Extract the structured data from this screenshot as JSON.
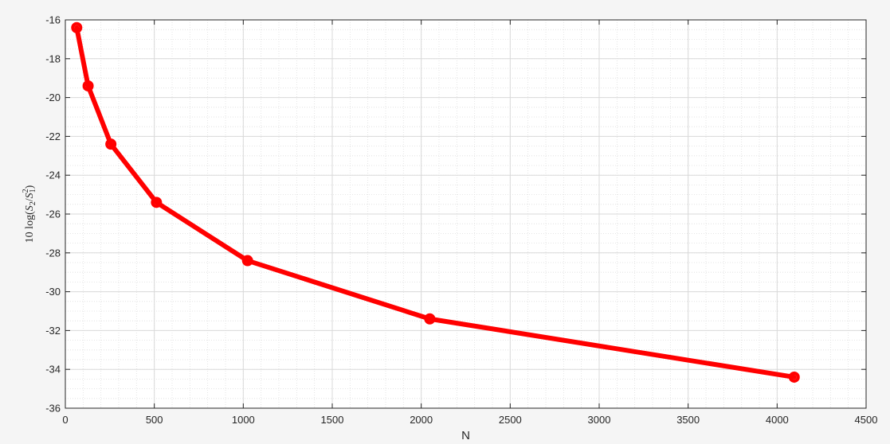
{
  "figure": {
    "background": "#f5f5f5",
    "axes_background": "#ffffff"
  },
  "chart_data": {
    "type": "line",
    "title": "",
    "xlabel": "N",
    "ylabel": "10 log(S2/S1^2)",
    "ylabel_parts": {
      "prefix": "10 log(",
      "s": "S",
      "sub2": "2",
      "slash": "/",
      "sub1": "1",
      "sup": "2",
      "close": ")"
    },
    "xlim": [
      0,
      4500
    ],
    "ylim": [
      -36,
      -16
    ],
    "xticks": [
      0,
      500,
      1000,
      1500,
      2000,
      2500,
      3000,
      3500,
      4000,
      4500
    ],
    "xtick_labels": [
      "0",
      "500",
      "1000",
      "1500",
      "2000",
      "2500",
      "3000",
      "3500",
      "4000",
      "4500"
    ],
    "yticks": [
      -36,
      -34,
      -32,
      -30,
      -28,
      -26,
      -24,
      -22,
      -20,
      -18,
      -16
    ],
    "ytick_labels": [
      "-36",
      "-34",
      "-32",
      "-30",
      "-28",
      "-26",
      "-24",
      "-22",
      "-20",
      "-18",
      "-16"
    ],
    "grid": true,
    "minor_grid": true,
    "series": [
      {
        "color": "#ff0000",
        "marker": "circle",
        "x": [
          64,
          128,
          256,
          512,
          1024,
          2048,
          4096
        ],
        "y": [
          -16.4,
          -19.4,
          -22.4,
          -25.4,
          -28.4,
          -31.4,
          -34.4
        ]
      }
    ]
  }
}
